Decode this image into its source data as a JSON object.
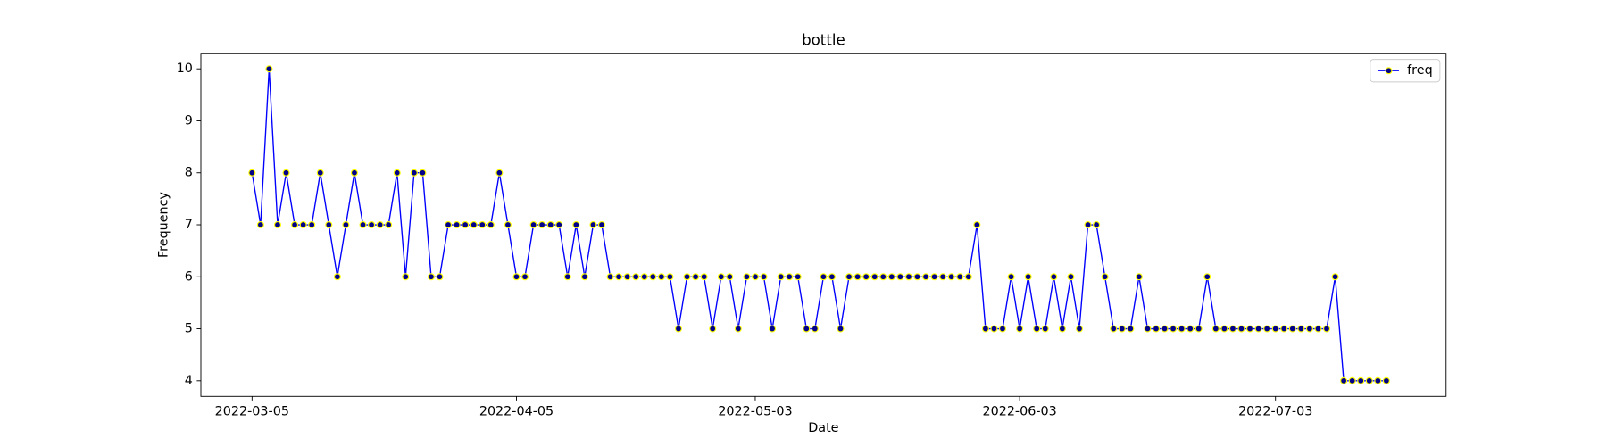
{
  "chart_data": {
    "type": "line",
    "title": "bottle",
    "xlabel": "Date",
    "ylabel": "Frequency",
    "x": [
      "2022-03-05",
      "2022-03-06",
      "2022-03-07",
      "2022-03-08",
      "2022-03-09",
      "2022-03-10",
      "2022-03-11",
      "2022-03-12",
      "2022-03-13",
      "2022-03-14",
      "2022-03-15",
      "2022-03-16",
      "2022-03-17",
      "2022-03-18",
      "2022-03-19",
      "2022-03-20",
      "2022-03-21",
      "2022-03-22",
      "2022-03-23",
      "2022-03-24",
      "2022-03-25",
      "2022-03-26",
      "2022-03-27",
      "2022-03-28",
      "2022-03-29",
      "2022-03-30",
      "2022-03-31",
      "2022-04-01",
      "2022-04-02",
      "2022-04-03",
      "2022-04-04",
      "2022-04-05",
      "2022-04-06",
      "2022-04-07",
      "2022-04-08",
      "2022-04-09",
      "2022-04-10",
      "2022-04-11",
      "2022-04-12",
      "2022-04-13",
      "2022-04-14",
      "2022-04-15",
      "2022-04-16",
      "2022-04-17",
      "2022-04-18",
      "2022-04-19",
      "2022-04-20",
      "2022-04-21",
      "2022-04-22",
      "2022-04-23",
      "2022-04-24",
      "2022-04-25",
      "2022-04-26",
      "2022-04-27",
      "2022-04-28",
      "2022-04-29",
      "2022-04-30",
      "2022-05-01",
      "2022-05-02",
      "2022-05-03",
      "2022-05-04",
      "2022-05-05",
      "2022-05-06",
      "2022-05-07",
      "2022-05-08",
      "2022-05-09",
      "2022-05-10",
      "2022-05-11",
      "2022-05-12",
      "2022-05-13",
      "2022-05-14",
      "2022-05-15",
      "2022-05-16",
      "2022-05-17",
      "2022-05-18",
      "2022-05-19",
      "2022-05-20",
      "2022-05-21",
      "2022-05-22",
      "2022-05-23",
      "2022-05-24",
      "2022-05-25",
      "2022-05-26",
      "2022-05-27",
      "2022-05-28",
      "2022-05-29",
      "2022-05-30",
      "2022-05-31",
      "2022-06-01",
      "2022-06-02",
      "2022-06-03",
      "2022-06-04",
      "2022-06-05",
      "2022-06-06",
      "2022-06-07",
      "2022-06-08",
      "2022-06-09",
      "2022-06-10",
      "2022-06-11",
      "2022-06-12",
      "2022-06-13",
      "2022-06-14",
      "2022-06-15",
      "2022-06-16",
      "2022-06-17",
      "2022-06-18",
      "2022-06-19",
      "2022-06-20",
      "2022-06-21",
      "2022-06-22",
      "2022-06-23",
      "2022-06-24",
      "2022-06-25",
      "2022-06-26",
      "2022-06-27",
      "2022-06-28",
      "2022-06-29",
      "2022-06-30",
      "2022-07-01",
      "2022-07-02",
      "2022-07-03",
      "2022-07-04",
      "2022-07-05",
      "2022-07-06",
      "2022-07-07",
      "2022-07-08",
      "2022-07-09",
      "2022-07-10",
      "2022-07-11",
      "2022-07-12",
      "2022-07-13",
      "2022-07-14",
      "2022-07-15",
      "2022-07-16"
    ],
    "series": [
      {
        "name": "freq",
        "color": "#0000ff",
        "marker_color": "#00008b",
        "marker_edge_color": "#ffff00",
        "values": [
          8,
          7,
          10,
          7,
          8,
          7,
          7,
          7,
          8,
          7,
          6,
          7,
          8,
          7,
          7,
          7,
          7,
          8,
          6,
          8,
          8,
          6,
          6,
          7,
          7,
          7,
          7,
          7,
          7,
          8,
          7,
          6,
          6,
          7,
          7,
          7,
          7,
          6,
          7,
          6,
          7,
          7,
          6,
          6,
          6,
          6,
          6,
          6,
          6,
          6,
          5,
          6,
          6,
          6,
          5,
          6,
          6,
          5,
          6,
          6,
          6,
          5,
          6,
          6,
          6,
          5,
          5,
          6,
          6,
          5,
          6,
          6,
          6,
          6,
          6,
          6,
          6,
          6,
          6,
          6,
          6,
          6,
          6,
          6,
          6,
          7,
          5,
          5,
          5,
          6,
          5,
          6,
          5,
          5,
          6,
          5,
          6,
          5,
          7,
          7,
          6,
          5,
          5,
          5,
          6,
          5,
          5,
          5,
          5,
          5,
          5,
          5,
          6,
          5,
          5,
          5,
          5,
          5,
          5,
          5,
          5,
          5,
          5,
          5,
          5,
          5,
          5,
          6,
          4,
          4,
          4,
          4,
          4,
          4
        ]
      }
    ],
    "xlim": [
      "2022-02-27",
      "2022-07-23"
    ],
    "xticks": [
      "2022-03-05",
      "2022-04-05",
      "2022-05-03",
      "2022-06-03",
      "2022-07-03"
    ],
    "ylim": [
      3.7,
      10.3
    ],
    "yticks": [
      4,
      5,
      6,
      7,
      8,
      9,
      10
    ],
    "legend": "upper right"
  }
}
